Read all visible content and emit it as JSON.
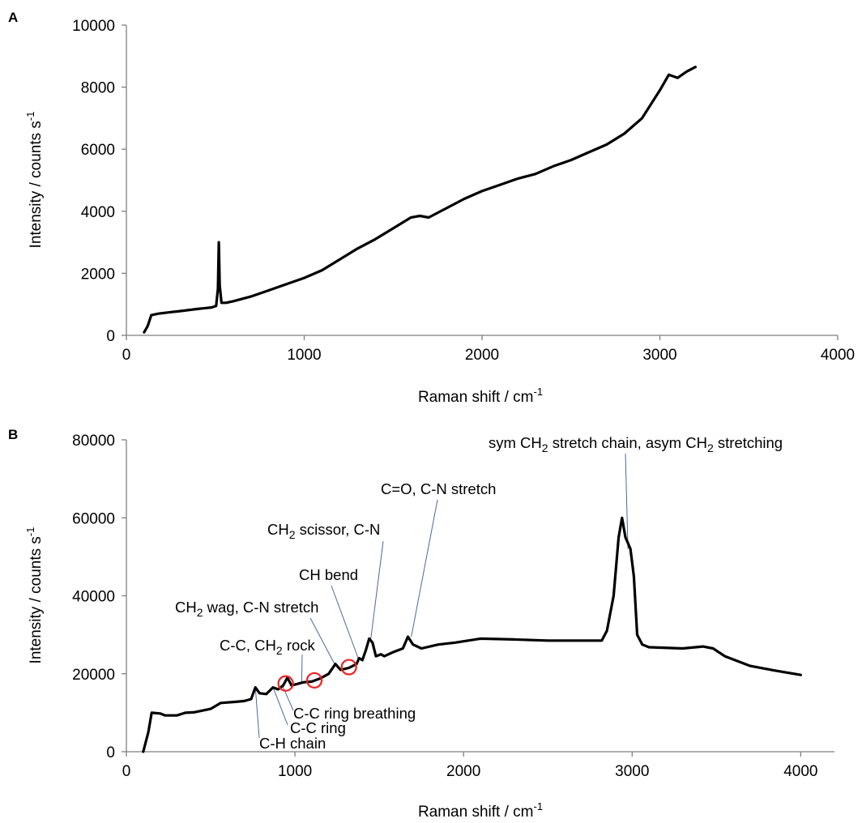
{
  "chart_data": [
    {
      "type": "line",
      "panel": "A",
      "xlabel": "Raman shift / cm",
      "xlabel_sup": "-1",
      "ylabel": "Intensity / counts s",
      "ylabel_sup": "-1",
      "xlim": [
        0,
        4000
      ],
      "ylim": [
        0,
        10000
      ],
      "x_ticks": [
        0,
        1000,
        2000,
        3000,
        4000
      ],
      "y_ticks": [
        0,
        2000,
        4000,
        6000,
        8000,
        10000
      ],
      "grid": false,
      "series": [
        {
          "points": [
            [
              100,
              100
            ],
            [
              120,
              300
            ],
            [
              140,
              650
            ],
            [
              180,
              700
            ],
            [
              250,
              750
            ],
            [
              300,
              780
            ],
            [
              400,
              850
            ],
            [
              480,
              900
            ],
            [
              505,
              950
            ],
            [
              515,
              1500
            ],
            [
              520,
              3000
            ],
            [
              525,
              1600
            ],
            [
              535,
              1050
            ],
            [
              560,
              1050
            ],
            [
              600,
              1100
            ],
            [
              700,
              1250
            ],
            [
              800,
              1450
            ],
            [
              900,
              1650
            ],
            [
              1000,
              1850
            ],
            [
              1100,
              2100
            ],
            [
              1200,
              2450
            ],
            [
              1300,
              2800
            ],
            [
              1400,
              3100
            ],
            [
              1500,
              3450
            ],
            [
              1600,
              3800
            ],
            [
              1650,
              3850
            ],
            [
              1700,
              3800
            ],
            [
              1800,
              4100
            ],
            [
              1900,
              4400
            ],
            [
              2000,
              4650
            ],
            [
              2100,
              4850
            ],
            [
              2200,
              5050
            ],
            [
              2300,
              5200
            ],
            [
              2400,
              5450
            ],
            [
              2500,
              5650
            ],
            [
              2600,
              5900
            ],
            [
              2700,
              6150
            ],
            [
              2800,
              6500
            ],
            [
              2900,
              7000
            ],
            [
              3000,
              7900
            ],
            [
              3050,
              8400
            ],
            [
              3100,
              8300
            ],
            [
              3150,
              8500
            ],
            [
              3200,
              8650
            ]
          ]
        }
      ]
    },
    {
      "type": "line",
      "panel": "B",
      "xlabel": "Raman shift / cm",
      "xlabel_sup": "-1",
      "ylabel": "Intensity / counts s",
      "ylabel_sup": "-1",
      "xlim": [
        0,
        4200
      ],
      "ylim": [
        0,
        80000
      ],
      "x_ticks": [
        0,
        1000,
        2000,
        3000,
        4000
      ],
      "y_ticks": [
        0,
        20000,
        40000,
        60000,
        80000
      ],
      "grid": false,
      "series": [
        {
          "points": [
            [
              100,
              0
            ],
            [
              130,
              5000
            ],
            [
              150,
              10000
            ],
            [
              200,
              9800
            ],
            [
              230,
              9300
            ],
            [
              300,
              9300
            ],
            [
              350,
              10000
            ],
            [
              400,
              10100
            ],
            [
              500,
              11000
            ],
            [
              560,
              12500
            ],
            [
              650,
              12800
            ],
            [
              700,
              13000
            ],
            [
              740,
              13500
            ],
            [
              765,
              16500
            ],
            [
              790,
              15000
            ],
            [
              830,
              14800
            ],
            [
              870,
              16500
            ],
            [
              900,
              16000
            ],
            [
              930,
              17000
            ],
            [
              955,
              19000
            ],
            [
              980,
              17000
            ],
            [
              1050,
              17800
            ],
            [
              1100,
              18000
            ],
            [
              1150,
              18800
            ],
            [
              1200,
              20000
            ],
            [
              1240,
              22500
            ],
            [
              1270,
              21000
            ],
            [
              1320,
              21500
            ],
            [
              1365,
              22500
            ],
            [
              1380,
              24000
            ],
            [
              1400,
              23500
            ],
            [
              1420,
              26000
            ],
            [
              1440,
              29000
            ],
            [
              1460,
              28000
            ],
            [
              1480,
              24500
            ],
            [
              1510,
              25000
            ],
            [
              1530,
              24500
            ],
            [
              1580,
              25500
            ],
            [
              1640,
              26500
            ],
            [
              1670,
              29500
            ],
            [
              1700,
              27500
            ],
            [
              1750,
              26500
            ],
            [
              1850,
              27500
            ],
            [
              1950,
              28000
            ],
            [
              2100,
              29000
            ],
            [
              2300,
              28800
            ],
            [
              2500,
              28500
            ],
            [
              2700,
              28500
            ],
            [
              2820,
              28500
            ],
            [
              2850,
              31000
            ],
            [
              2890,
              40000
            ],
            [
              2920,
              55000
            ],
            [
              2940,
              60000
            ],
            [
              2960,
              55000
            ],
            [
              2990,
              52000
            ],
            [
              3010,
              45000
            ],
            [
              3030,
              30000
            ],
            [
              3060,
              27500
            ],
            [
              3100,
              26800
            ],
            [
              3300,
              26500
            ],
            [
              3420,
              27000
            ],
            [
              3480,
              26500
            ],
            [
              3550,
              24500
            ],
            [
              3700,
              22000
            ],
            [
              3850,
              20800
            ],
            [
              4000,
              19700
            ]
          ]
        }
      ],
      "annotations": [
        {
          "parts": [
            [
              "sym CH",
              ""
            ],
            [
              "2",
              "sub"
            ],
            [
              " stretch chain, asym CH",
              ""
            ],
            [
              "2",
              "sub"
            ],
            [
              " stretching",
              ""
            ]
          ]
        },
        {
          "parts": [
            [
              "C=O, C-N stretch",
              ""
            ]
          ]
        },
        {
          "parts": [
            [
              "CH",
              ""
            ],
            [
              "2",
              "sub"
            ],
            [
              " scissor, C-N",
              ""
            ]
          ]
        },
        {
          "parts": [
            [
              "CH bend",
              ""
            ]
          ]
        },
        {
          "parts": [
            [
              "CH",
              ""
            ],
            [
              "2",
              "sub"
            ],
            [
              " wag, C-N stretch",
              ""
            ]
          ]
        },
        {
          "parts": [
            [
              "C-C, CH",
              ""
            ],
            [
              "2",
              "sub"
            ],
            [
              " rock",
              ""
            ]
          ]
        },
        {
          "parts": [
            [
              "C-C ring breathing",
              ""
            ]
          ]
        },
        {
          "parts": [
            [
              "C-C ring",
              ""
            ]
          ]
        },
        {
          "parts": [
            [
              "C-H chain",
              ""
            ]
          ]
        }
      ],
      "highlight_circles_x": [
        945,
        1115,
        1320
      ]
    }
  ],
  "colors": {
    "series": "#000000",
    "axis": "#7f7f7f",
    "leader": "#4a6a9a",
    "highlight": "#ee2222"
  }
}
